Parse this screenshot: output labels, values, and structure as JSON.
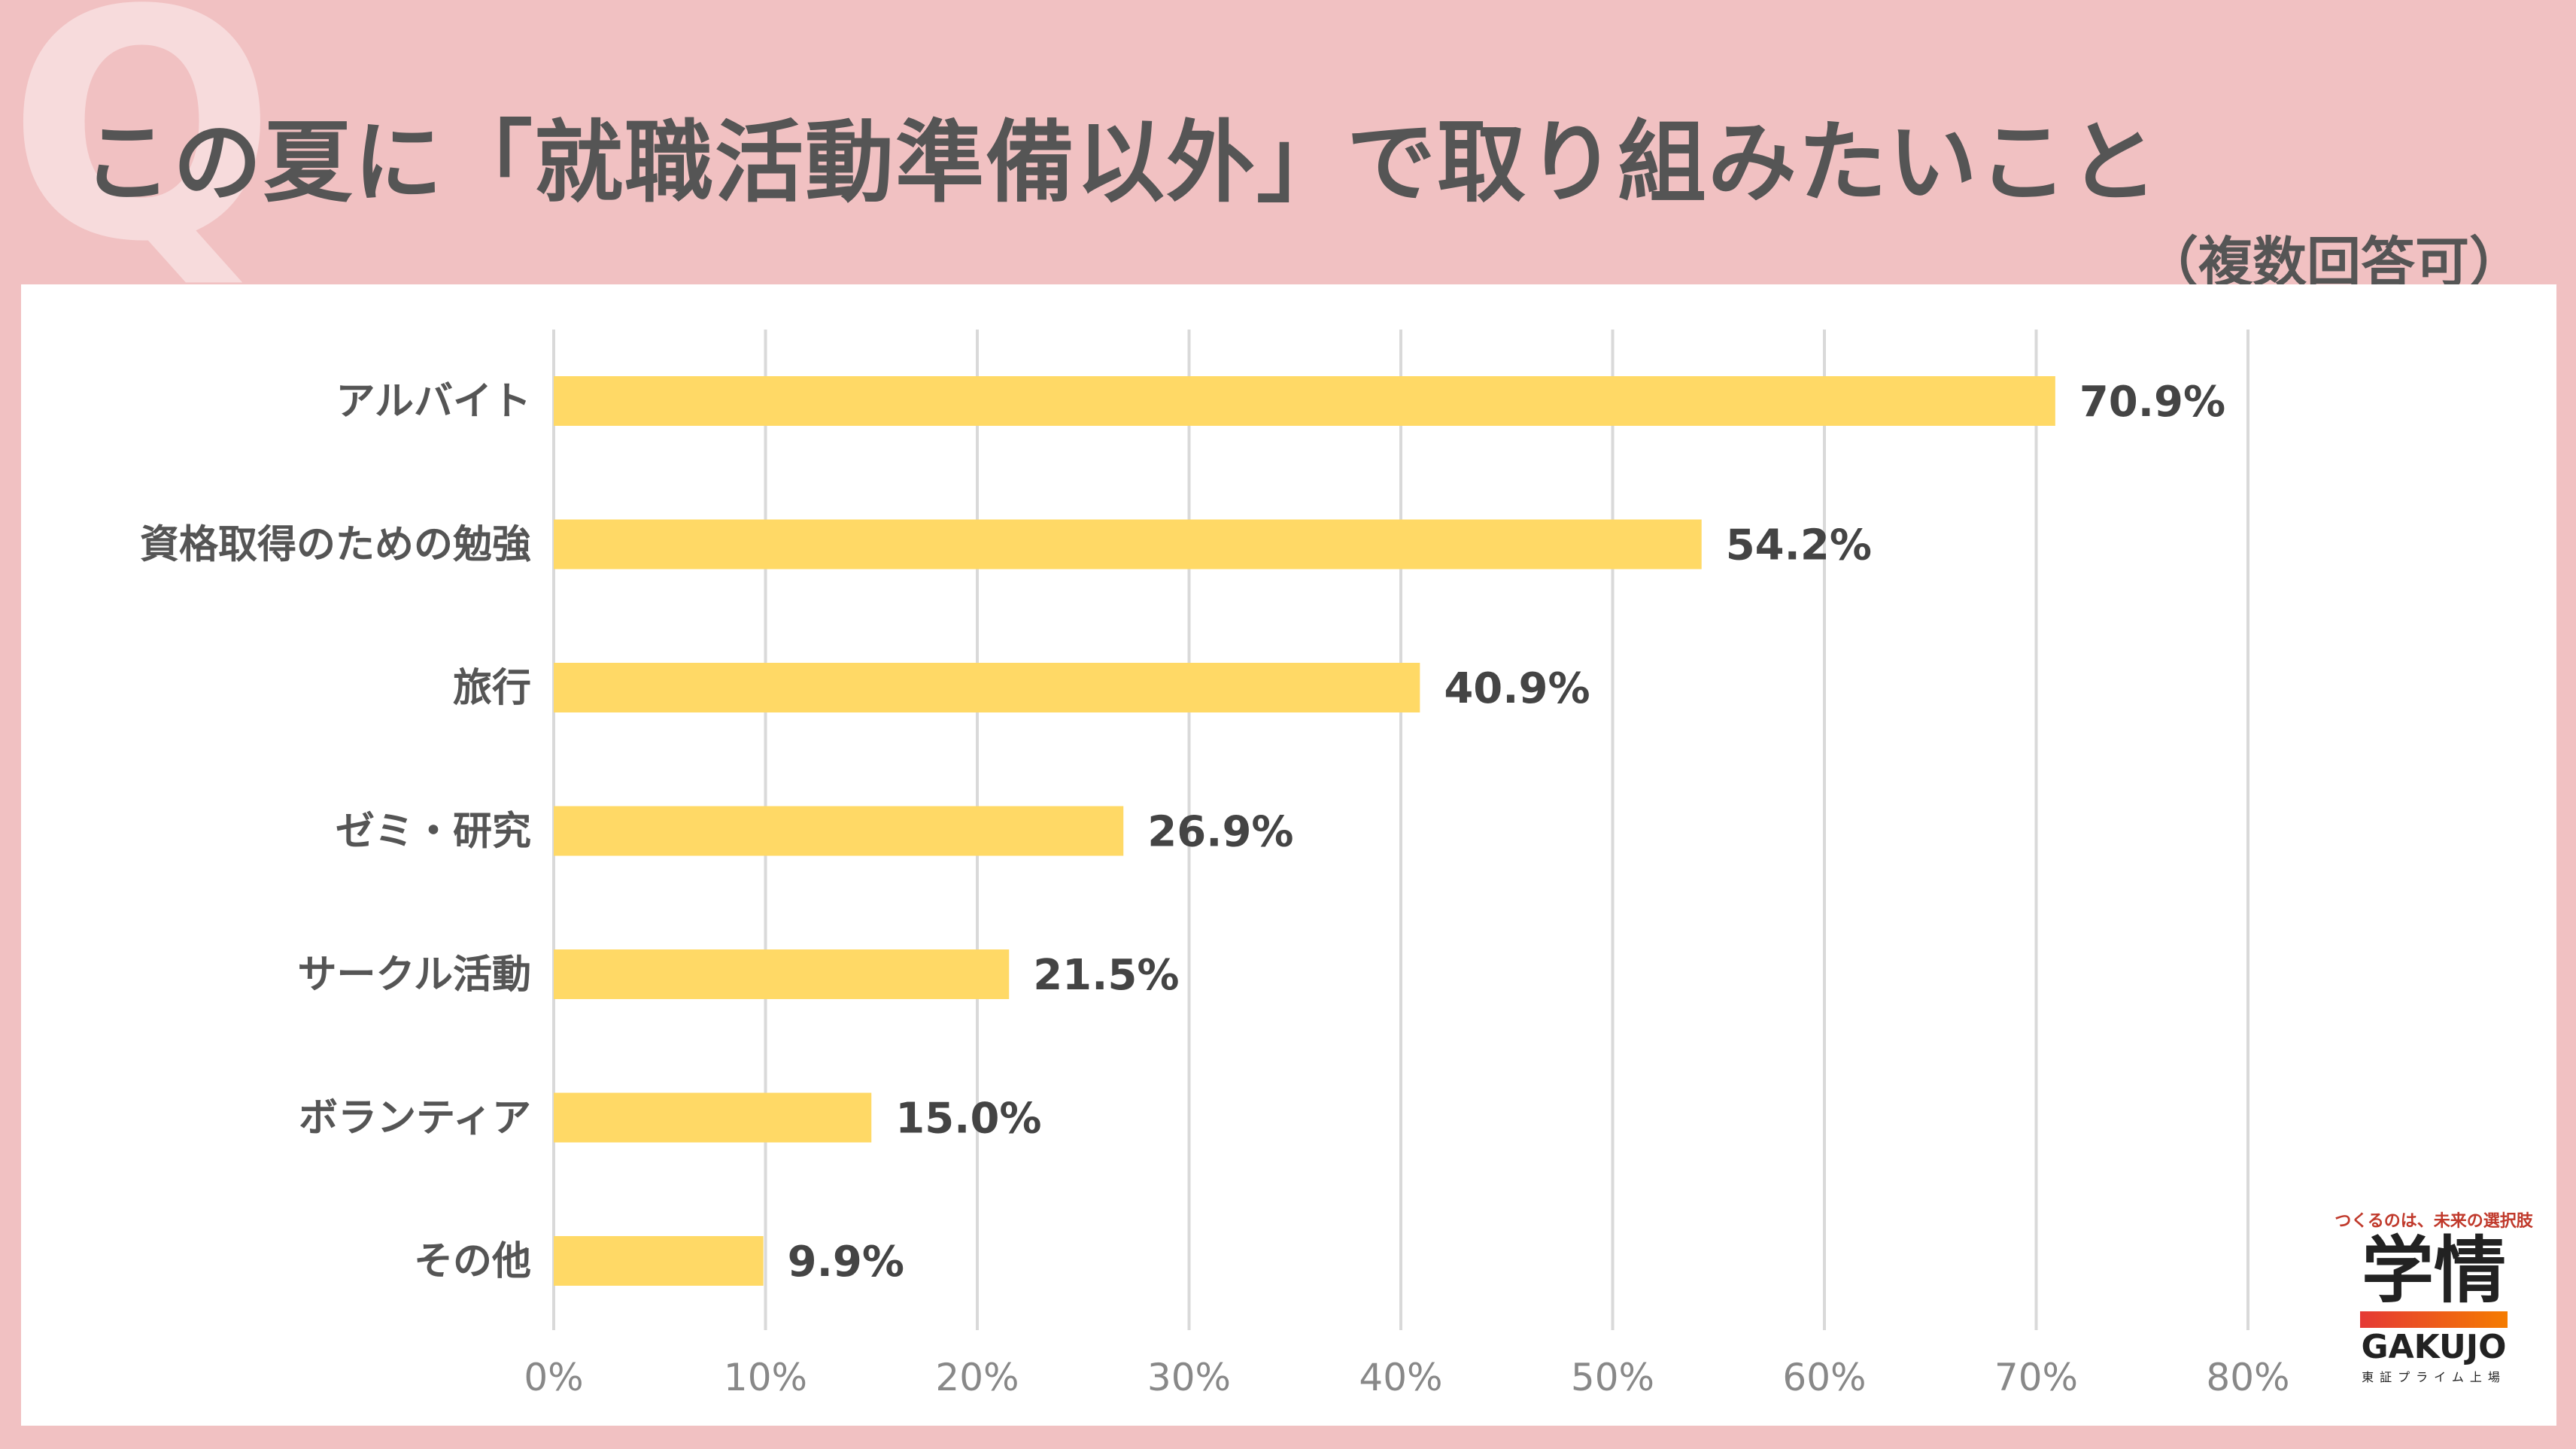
{
  "header": {
    "q_mark": "Q",
    "title": "この夏に「就職活動準備以外」で取り組みたいこと",
    "subtitle": "（複数回答可）"
  },
  "colors": {
    "bar": "#ffd966",
    "grid": "#d9d9d9",
    "background": "#f1c1c2"
  },
  "chart_data": {
    "type": "bar",
    "orientation": "horizontal",
    "title": "この夏に「就職活動準備以外」で取り組みたいこと",
    "categories": [
      "アルバイト",
      "資格取得のための勉強",
      "旅行",
      "ゼミ・研究",
      "サークル活動",
      "ボランティア",
      "その他"
    ],
    "values": [
      70.9,
      54.2,
      40.9,
      26.9,
      21.5,
      15.0,
      9.9
    ],
    "value_labels": [
      "70.9%",
      "54.2%",
      "40.9%",
      "26.9%",
      "21.5%",
      "15.0%",
      "9.9%"
    ],
    "x_ticks": [
      "0%",
      "10%",
      "20%",
      "30%",
      "40%",
      "50%",
      "60%",
      "70%",
      "80%"
    ],
    "xlim": [
      0,
      80
    ],
    "xlabel": "",
    "ylabel": "",
    "grid": true
  },
  "logo": {
    "tagline": "つくるのは、未来の選択肢",
    "kanji": "学情",
    "english": "GAKUJO",
    "sub": "東証プライム上場"
  }
}
